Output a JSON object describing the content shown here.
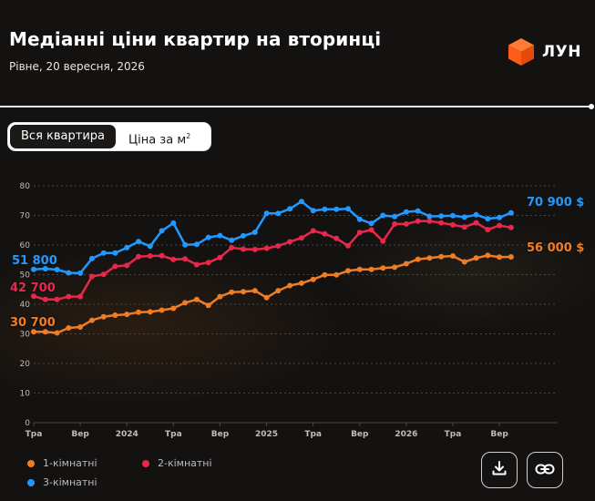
{
  "header": {
    "title": "Медіанні ціни квартир на вторинці",
    "subtitle": "Рівне, 20 вересня, 2026",
    "brand_name": "ЛУН",
    "brand_icon": "orange-cube-logo",
    "brand_color": "#ff5c1a"
  },
  "toggle": {
    "options": [
      "Вся квартира",
      "Ціна за м"
    ],
    "superscript": "2",
    "selected": "Вся квартира"
  },
  "colors": {
    "background": "#141211",
    "grid": "#4a4744",
    "axis_text": "#bfbcb8"
  },
  "chart_data": {
    "type": "line",
    "title": "",
    "xlabel": "",
    "ylabel": "",
    "ylim": [
      0,
      80
    ],
    "yticks": [
      0,
      10,
      20,
      30,
      40,
      50,
      60,
      70,
      80
    ],
    "y_unit": "тис. $",
    "xlim": [
      "2023-01",
      "2026-10"
    ],
    "xticks": [
      {
        "x": "2023-01",
        "label": "Тра"
      },
      {
        "x": "2023-05",
        "label": "Вер"
      },
      {
        "x": "2023-09",
        "label": "2024"
      },
      {
        "x": "2024-01",
        "label": "Тра"
      },
      {
        "x": "2024-05",
        "label": "Вер"
      },
      {
        "x": "2024-09",
        "label": "2025"
      },
      {
        "x": "2025-01",
        "label": "Тра"
      },
      {
        "x": "2025-05",
        "label": "Вер"
      },
      {
        "x": "2025-09",
        "label": "2026"
      },
      {
        "x": "2026-01",
        "label": "Тра"
      },
      {
        "x": "2026-05",
        "label": "Вер"
      }
    ],
    "x": [
      "2023-01",
      "2023-02",
      "2023-03",
      "2023-04",
      "2023-05",
      "2023-06",
      "2023-07",
      "2023-08",
      "2023-09",
      "2023-10",
      "2023-11",
      "2023-12",
      "2024-01",
      "2024-02",
      "2024-03",
      "2024-04",
      "2024-05",
      "2024-06",
      "2024-07",
      "2024-08",
      "2024-09",
      "2024-10",
      "2024-11",
      "2024-12",
      "2025-01",
      "2025-02",
      "2025-03",
      "2025-04",
      "2025-05",
      "2025-06",
      "2025-07",
      "2025-08",
      "2025-09",
      "2025-10",
      "2025-11",
      "2025-12",
      "2026-01",
      "2026-02",
      "2026-03",
      "2026-04",
      "2026-05",
      "2026-06"
    ],
    "grid": true,
    "legend_position": "bottom-left",
    "series": [
      {
        "name": "1-кімнатні",
        "color": "#f07d24",
        "values": [
          30.7,
          30.7,
          30.3,
          32,
          32.3,
          34.6,
          35.8,
          36.3,
          36.6,
          37.3,
          37.4,
          38,
          38.6,
          40.5,
          41.6,
          39.6,
          42.6,
          44.1,
          44.2,
          44.6,
          42.2,
          44.6,
          46.3,
          47.1,
          48.4,
          49.9,
          49.9,
          51.3,
          51.8,
          51.8,
          52.2,
          52.5,
          53.7,
          55.2,
          55.6,
          56.1,
          56.3,
          54.3,
          55.6,
          56.5,
          55.9,
          56.0
        ],
        "end_label": "30 700",
        "end_value": 30700,
        "end_label_text": "56 000 $"
      },
      {
        "name": "2-кімнатні",
        "color": "#e8284b",
        "values": [
          42.7,
          41.6,
          41.6,
          42.6,
          42.6,
          49.4,
          50.1,
          52.8,
          53.1,
          56.1,
          56.3,
          56.4,
          55.1,
          55.3,
          53.4,
          54.1,
          55.8,
          59.1,
          58.6,
          58.5,
          58.9,
          59.7,
          61.1,
          62.4,
          64.8,
          63.8,
          62.2,
          59.8,
          64.2,
          65.1,
          61.3,
          67.1,
          67.1,
          68.1,
          68.1,
          67.5,
          66.8,
          66.1,
          67.5,
          65.2,
          66.6,
          65.9
        ],
        "end_label": "42 700",
        "end_value": 42700,
        "end_label_text": ""
      },
      {
        "name": "3-кімнатні",
        "color": "#2299ff",
        "values": [
          51.8,
          52,
          51.7,
          50.6,
          50.5,
          55.4,
          57.3,
          57.3,
          59.1,
          61.2,
          59.6,
          64.8,
          67.4,
          60.1,
          60.2,
          62.6,
          63.2,
          61.6,
          63.1,
          64.3,
          70.7,
          70.7,
          72.2,
          74.7,
          71.6,
          72.1,
          72.1,
          72.2,
          68.7,
          67.3,
          70,
          69.6,
          71.2,
          71.5,
          69.7,
          69.8,
          69.9,
          69.4,
          70.2,
          68.9,
          69.3,
          70.9
        ],
        "end_label": "51 800",
        "end_value": 51800,
        "end_label_text": "70 900 $"
      }
    ],
    "start_labels": [
      "30 700",
      "42 700",
      "51 800"
    ],
    "end_labels": [
      "56 000 $",
      "70 900 $"
    ]
  },
  "legend": {
    "items": [
      {
        "label": "1-кімнатні",
        "color": "#f07d24"
      },
      {
        "label": "2-кімнатні",
        "color": "#e8284b"
      },
      {
        "label": "3-кімнатні",
        "color": "#2299ff"
      }
    ]
  },
  "actions": {
    "download_icon": "download-icon",
    "link_icon": "link-icon"
  }
}
